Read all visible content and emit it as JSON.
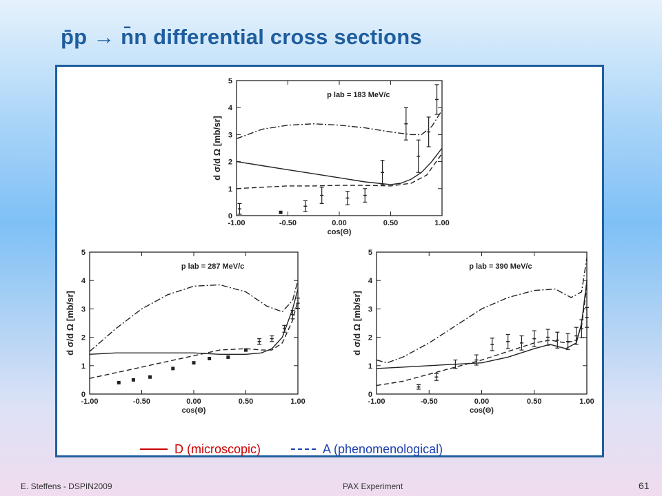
{
  "slide": {
    "title": "p̄p → n̄n differential cross sections",
    "footer_left": "E. Steffens  -  DSPIN2009",
    "footer_center": "PAX Experiment",
    "page_number": "61",
    "legend_d": "D (microscopic)",
    "legend_a": "A (phenomenological)",
    "colors": {
      "title": "#1f5e9e",
      "frame": "#1f5e9e",
      "legend_d": "#cc0000",
      "legend_a": "#1d3fb0"
    }
  },
  "chart_data": [
    {
      "type": "line",
      "title": "p lab = 183 MeV/c",
      "xlabel": "cos(Θ)",
      "ylabel": "d σ/d Ω  [mb/sr]",
      "xlim": [
        -1.0,
        1.0
      ],
      "ylim": [
        0,
        5
      ],
      "xticks": [
        "-1.00",
        "-0.50",
        "0.00",
        "0.50",
        "1.00"
      ],
      "yticks": [
        "0",
        "1",
        "2",
        "3",
        "4",
        "5"
      ],
      "series": [
        {
          "name": "D (microscopic)",
          "style": "solid",
          "x": [
            -1.0,
            -0.75,
            -0.5,
            -0.25,
            0.0,
            0.25,
            0.5,
            0.6,
            0.7,
            0.8,
            0.9,
            1.0
          ],
          "y": [
            2.0,
            1.85,
            1.7,
            1.55,
            1.4,
            1.25,
            1.15,
            1.2,
            1.35,
            1.6,
            2.0,
            2.5
          ]
        },
        {
          "name": "A (phenomenological)",
          "style": "dashed",
          "x": [
            -1.0,
            -0.75,
            -0.5,
            -0.25,
            0.0,
            0.25,
            0.5,
            0.7,
            0.85,
            1.0
          ],
          "y": [
            1.0,
            1.05,
            1.1,
            1.1,
            1.12,
            1.12,
            1.1,
            1.2,
            1.5,
            2.3
          ]
        },
        {
          "style": "dashdot",
          "x": [
            -1.0,
            -0.75,
            -0.5,
            -0.25,
            0.0,
            0.25,
            0.5,
            0.7,
            0.8,
            0.9,
            1.0
          ],
          "y": [
            2.85,
            3.2,
            3.35,
            3.4,
            3.35,
            3.25,
            3.1,
            3.0,
            3.0,
            3.3,
            3.9
          ]
        },
        {
          "style": "points",
          "x": [
            -0.97,
            -0.57,
            -0.33,
            -0.17,
            0.08,
            0.25,
            0.42,
            0.65,
            0.77,
            0.87,
            0.95
          ],
          "y": [
            0.25,
            0.12,
            0.35,
            0.75,
            0.65,
            0.75,
            1.6,
            3.4,
            2.2,
            3.1,
            4.3
          ],
          "err": [
            0.2,
            0.05,
            0.2,
            0.3,
            0.25,
            0.25,
            0.45,
            0.6,
            0.6,
            0.55,
            0.55
          ]
        }
      ]
    },
    {
      "type": "line",
      "title": "p lab = 287 MeV/c",
      "xlabel": "cos(Θ)",
      "ylabel": "d σ/d Ω  [mb/sr]",
      "xlim": [
        -1.0,
        1.0
      ],
      "ylim": [
        0,
        5
      ],
      "xticks": [
        "-1.00",
        "-0.50",
        "0.00",
        "0.50",
        "1.00"
      ],
      "yticks": [
        "0",
        "1",
        "2",
        "3",
        "4",
        "5"
      ],
      "series": [
        {
          "name": "D (microscopic)",
          "style": "solid",
          "x": [
            -1.0,
            -0.75,
            -0.5,
            -0.25,
            0.0,
            0.25,
            0.5,
            0.65,
            0.75,
            0.85,
            0.95,
            1.0
          ],
          "y": [
            1.4,
            1.45,
            1.45,
            1.45,
            1.45,
            1.4,
            1.4,
            1.45,
            1.6,
            2.0,
            3.0,
            3.7
          ]
        },
        {
          "name": "A (phenomenological)",
          "style": "dashed",
          "x": [
            -1.0,
            -0.75,
            -0.5,
            -0.25,
            0.0,
            0.25,
            0.5,
            0.65,
            0.75,
            0.85,
            0.95,
            1.0
          ],
          "y": [
            0.55,
            0.75,
            0.95,
            1.15,
            1.35,
            1.55,
            1.6,
            1.55,
            1.55,
            1.8,
            2.6,
            3.3
          ]
        },
        {
          "style": "dashdot",
          "x": [
            -1.0,
            -0.75,
            -0.5,
            -0.25,
            0.0,
            0.25,
            0.5,
            0.7,
            0.85,
            0.95,
            1.0
          ],
          "y": [
            1.5,
            2.3,
            3.0,
            3.5,
            3.8,
            3.85,
            3.6,
            3.1,
            2.9,
            3.3,
            4.0
          ]
        },
        {
          "style": "points",
          "x": [
            -0.72,
            -0.58,
            -0.42,
            -0.2,
            0.0,
            0.15,
            0.33,
            0.5,
            0.63,
            0.75,
            0.87,
            0.95,
            1.0
          ],
          "y": [
            0.4,
            0.5,
            0.6,
            0.9,
            1.1,
            1.25,
            1.3,
            1.55,
            1.85,
            1.95,
            2.3,
            2.8,
            3.2
          ],
          "err": [
            0.05,
            0.05,
            0.05,
            0.05,
            0.05,
            0.05,
            0.05,
            0.05,
            0.1,
            0.1,
            0.12,
            0.15,
            0.18
          ]
        }
      ]
    },
    {
      "type": "line",
      "title": "p lab = 390 MeV/c",
      "xlabel": "cos(Θ)",
      "ylabel": "d σ/d Ω  [mb/sr]",
      "xlim": [
        -1.0,
        1.0
      ],
      "ylim": [
        0,
        5
      ],
      "xticks": [
        "-1.00",
        "-0.50",
        "0.00",
        "0.50",
        "1.00"
      ],
      "yticks": [
        "0",
        "1",
        "2",
        "3",
        "4",
        "5"
      ],
      "series": [
        {
          "name": "D (microscopic)",
          "style": "solid",
          "x": [
            -1.0,
            -0.75,
            -0.5,
            -0.25,
            0.0,
            0.25,
            0.5,
            0.65,
            0.8,
            0.9,
            0.95,
            1.0
          ],
          "y": [
            0.9,
            0.95,
            1.0,
            1.05,
            1.1,
            1.3,
            1.6,
            1.75,
            1.6,
            1.8,
            2.5,
            4.0
          ]
        },
        {
          "name": "A (phenomenological)",
          "style": "dashed",
          "x": [
            -1.0,
            -0.75,
            -0.5,
            -0.25,
            0.0,
            0.25,
            0.5,
            0.65,
            0.8,
            0.9,
            0.95,
            1.0
          ],
          "y": [
            0.3,
            0.45,
            0.7,
            0.95,
            1.2,
            1.5,
            1.8,
            1.9,
            1.8,
            1.9,
            2.4,
            3.8
          ]
        },
        {
          "style": "dashdot",
          "x": [
            -1.0,
            -0.9,
            -0.75,
            -0.5,
            -0.25,
            0.0,
            0.25,
            0.5,
            0.7,
            0.85,
            0.95,
            1.0
          ],
          "y": [
            1.2,
            1.1,
            1.3,
            1.8,
            2.4,
            3.0,
            3.4,
            3.65,
            3.7,
            3.4,
            3.6,
            4.8
          ]
        },
        {
          "style": "points",
          "x": [
            -0.6,
            -0.43,
            -0.25,
            -0.05,
            0.1,
            0.25,
            0.38,
            0.5,
            0.63,
            0.72,
            0.82,
            0.9,
            0.95,
            1.0
          ],
          "y": [
            0.25,
            0.6,
            1.05,
            1.2,
            1.75,
            1.85,
            1.8,
            1.95,
            2.0,
            1.9,
            1.85,
            2.05,
            2.3,
            2.7
          ],
          "err": [
            0.08,
            0.12,
            0.15,
            0.18,
            0.22,
            0.25,
            0.25,
            0.28,
            0.28,
            0.28,
            0.28,
            0.3,
            0.32,
            0.35
          ]
        }
      ]
    }
  ]
}
